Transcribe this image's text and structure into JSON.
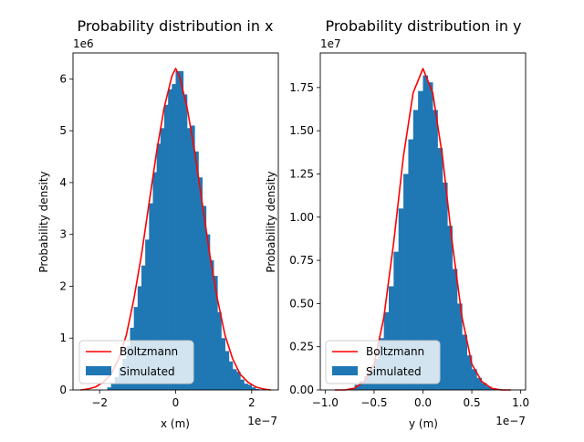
{
  "chart_data": [
    {
      "type": "bar",
      "title": "Probability distribution in x",
      "xlabel": "x (m)",
      "ylabel": "Probability density",
      "x_scale_label": "1e−7",
      "y_scale_label": "1e6",
      "x_scale": 1e-07,
      "y_scale": 1000000,
      "xlim": [
        -2.7,
        2.7
      ],
      "ylim": [
        0,
        6.5
      ],
      "xticks": [
        -2,
        0,
        2
      ],
      "yticks": [
        0,
        1,
        2,
        3,
        4,
        5,
        6
      ],
      "xtick_labels": [
        "−2",
        "0",
        "2"
      ],
      "ytick_labels": [
        "0",
        "1",
        "2",
        "3",
        "4",
        "5",
        "6"
      ],
      "legend": {
        "position": "lower-left",
        "entries": [
          "Boltzmann",
          "Simulated"
        ]
      },
      "grid": false,
      "series": [
        {
          "name": "Simulated",
          "kind": "histogram",
          "color": "#1f77b4",
          "bin_edges": [
            -1.8,
            -1.7,
            -1.6,
            -1.5,
            -1.4,
            -1.3,
            -1.2,
            -1.1,
            -1.0,
            -0.9,
            -0.8,
            -0.7,
            -0.6,
            -0.5,
            -0.4,
            -0.3,
            -0.2,
            -0.1,
            0.0,
            0.1,
            0.2,
            0.3,
            0.4,
            0.5,
            0.6,
            0.7,
            0.8,
            0.9,
            1.0,
            1.1,
            1.2,
            1.3,
            1.4,
            1.5,
            1.6,
            1.7,
            1.8,
            1.9,
            2.0,
            2.1,
            2.2
          ],
          "values": [
            0.05,
            0.12,
            0.25,
            0.42,
            0.6,
            0.85,
            1.2,
            1.6,
            2.0,
            2.4,
            2.9,
            3.6,
            4.2,
            4.75,
            5.05,
            5.5,
            5.8,
            5.9,
            6.15,
            6.15,
            5.7,
            5.05,
            5.1,
            4.6,
            4.1,
            3.55,
            3.0,
            2.5,
            2.2,
            1.5,
            1.0,
            0.75,
            0.55,
            0.4,
            0.35,
            0.2,
            0.12,
            0.1,
            0.05,
            0.02
          ]
        },
        {
          "name": "Boltzmann",
          "kind": "line",
          "color": "#ff0000",
          "x": [
            -2.5,
            -2.3,
            -2.1,
            -1.9,
            -1.7,
            -1.5,
            -1.3,
            -1.1,
            -0.9,
            -0.7,
            -0.5,
            -0.3,
            -0.1,
            0.0,
            0.1,
            0.3,
            0.5,
            0.7,
            0.9,
            1.1,
            1.3,
            1.5,
            1.7,
            1.9,
            2.1,
            2.3,
            2.5
          ],
          "y": [
            0.0,
            0.02,
            0.06,
            0.15,
            0.3,
            0.6,
            1.05,
            1.75,
            2.6,
            3.6,
            4.6,
            5.45,
            6.05,
            6.2,
            6.05,
            5.45,
            4.6,
            3.6,
            2.6,
            1.75,
            1.05,
            0.6,
            0.3,
            0.15,
            0.06,
            0.02,
            0.0
          ]
        }
      ]
    },
    {
      "type": "bar",
      "title": "Probability distribution in y",
      "xlabel": "y (m)",
      "ylabel": "Probability density",
      "x_scale_label": "1e−7",
      "y_scale_label": "1e7",
      "x_scale": 1e-07,
      "y_scale": 10000000,
      "xlim": [
        -1.05,
        1.05
      ],
      "ylim": [
        0,
        1.95
      ],
      "xticks": [
        -1.0,
        -0.5,
        0.0,
        0.5,
        1.0
      ],
      "yticks": [
        0,
        0.25,
        0.5,
        0.75,
        1.0,
        1.25,
        1.5,
        1.75
      ],
      "xtick_labels": [
        "−1.0",
        "−0.5",
        "0.0",
        "0.5",
        "1.0"
      ],
      "ytick_labels": [
        "0.00",
        "0.25",
        "0.50",
        "0.75",
        "1.00",
        "1.25",
        "1.50",
        "1.75"
      ],
      "legend": {
        "position": "lower-left",
        "entries": [
          "Boltzmann",
          "Simulated"
        ]
      },
      "grid": false,
      "series": [
        {
          "name": "Simulated",
          "kind": "histogram",
          "color": "#1f77b4",
          "bin_edges": [
            -0.75,
            -0.7,
            -0.65,
            -0.6,
            -0.55,
            -0.5,
            -0.45,
            -0.4,
            -0.35,
            -0.3,
            -0.25,
            -0.2,
            -0.15,
            -0.1,
            -0.05,
            0.0,
            0.05,
            0.1,
            0.15,
            0.2,
            0.25,
            0.3,
            0.35,
            0.4,
            0.45,
            0.5,
            0.55,
            0.6,
            0.65,
            0.7,
            0.75,
            0.8,
            0.85,
            0.9
          ],
          "values": [
            0.01,
            0.03,
            0.05,
            0.08,
            0.12,
            0.18,
            0.3,
            0.45,
            0.6,
            0.8,
            1.05,
            1.25,
            1.45,
            1.62,
            1.73,
            1.82,
            1.78,
            1.62,
            1.4,
            1.2,
            0.95,
            0.7,
            0.5,
            0.32,
            0.2,
            0.12,
            0.07,
            0.04,
            0.02,
            0.01,
            0.005,
            0.003,
            0.002
          ]
        },
        {
          "name": "Boltzmann",
          "kind": "line",
          "color": "#ff0000",
          "x": [
            -0.9,
            -0.8,
            -0.7,
            -0.6,
            -0.5,
            -0.4,
            -0.3,
            -0.2,
            -0.1,
            0.0,
            0.1,
            0.2,
            0.3,
            0.4,
            0.5,
            0.6,
            0.7,
            0.8,
            0.9
          ],
          "y": [
            0.0,
            0.0,
            0.01,
            0.05,
            0.15,
            0.42,
            0.85,
            1.35,
            1.72,
            1.86,
            1.72,
            1.35,
            0.85,
            0.42,
            0.15,
            0.05,
            0.01,
            0.0,
            0.0
          ]
        }
      ]
    }
  ]
}
